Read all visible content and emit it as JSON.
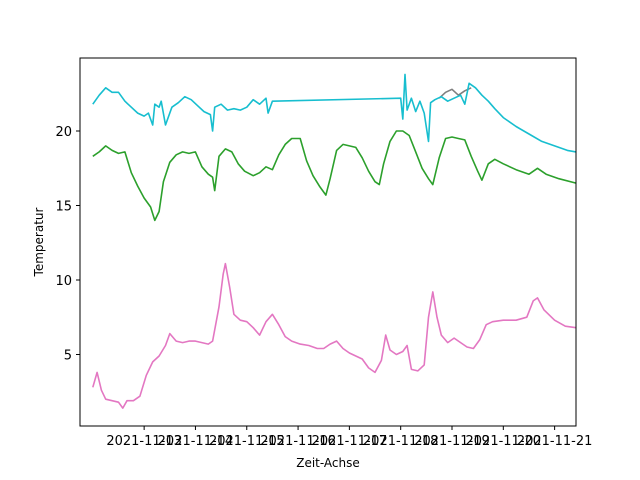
{
  "chart_data": {
    "type": "line",
    "xlabel": "Zeit-Achse",
    "ylabel": "Temperatur",
    "xlim": [
      "2021-11-11T18:00",
      "2021-11-21T10:00"
    ],
    "ylim": [
      0.2,
      24.9
    ],
    "grid": false,
    "x_ticks": [
      "2021-11-13",
      "2021-11-14",
      "2021-11-15",
      "2021-11-16",
      "2021-11-17",
      "2021-11-18",
      "2021-11-19",
      "2021-11-20",
      "2021-11-21"
    ],
    "x_tick_labels": [
      "2021-11-13",
      "2021-11-14",
      "2021-11-15",
      "2021-11-16",
      "2021-11-17",
      "2021-11-18",
      "2021-11-19",
      "2021-11-20",
      "2021-11-21"
    ],
    "y_ticks": [
      5,
      10,
      15,
      20
    ],
    "series": [
      {
        "color": "#7f7f7f",
        "points": [
          [
            "2021-11-18T18:00",
            22.2
          ],
          [
            "2021-11-18T21:00",
            22.6
          ],
          [
            "2021-11-19T00:00",
            22.8
          ],
          [
            "2021-11-19T03:00",
            22.4
          ],
          [
            "2021-11-19T06:00",
            22.7
          ],
          [
            "2021-11-19T09:00",
            22.9
          ]
        ]
      },
      {
        "color": "#17becf",
        "points": [
          [
            "2021-11-12T00:00",
            21.8
          ],
          [
            "2021-11-12T03:00",
            22.4
          ],
          [
            "2021-11-12T06:00",
            22.9
          ],
          [
            "2021-11-12T09:00",
            22.6
          ],
          [
            "2021-11-12T12:00",
            22.6
          ],
          [
            "2021-11-12T15:00",
            22.0
          ],
          [
            "2021-11-12T18:00",
            21.6
          ],
          [
            "2021-11-12T21:00",
            21.2
          ],
          [
            "2021-11-13T00:00",
            21.0
          ],
          [
            "2021-11-13T02:00",
            21.2
          ],
          [
            "2021-11-13T04:00",
            20.4
          ],
          [
            "2021-11-13T05:00",
            21.8
          ],
          [
            "2021-11-13T07:00",
            21.6
          ],
          [
            "2021-11-13T08:00",
            22.0
          ],
          [
            "2021-11-13T10:00",
            20.4
          ],
          [
            "2021-11-13T13:00",
            21.6
          ],
          [
            "2021-11-13T16:00",
            21.9
          ],
          [
            "2021-11-13T19:00",
            22.3
          ],
          [
            "2021-11-13T22:00",
            22.1
          ],
          [
            "2021-11-14T01:00",
            21.7
          ],
          [
            "2021-11-14T04:00",
            21.3
          ],
          [
            "2021-11-14T07:00",
            21.1
          ],
          [
            "2021-11-14T08:00",
            20.0
          ],
          [
            "2021-11-14T09:00",
            21.6
          ],
          [
            "2021-11-14T12:00",
            21.8
          ],
          [
            "2021-11-14T15:00",
            21.4
          ],
          [
            "2021-11-14T18:00",
            21.5
          ],
          [
            "2021-11-14T21:00",
            21.4
          ],
          [
            "2021-11-15T00:00",
            21.6
          ],
          [
            "2021-11-15T03:00",
            22.1
          ],
          [
            "2021-11-15T06:00",
            21.8
          ],
          [
            "2021-11-15T09:00",
            22.2
          ],
          [
            "2021-11-15T10:00",
            21.2
          ],
          [
            "2021-11-15T12:00",
            22.0
          ],
          [
            "2021-11-18T00:00",
            22.2
          ],
          [
            "2021-11-18T01:00",
            20.8
          ],
          [
            "2021-11-18T02:00",
            23.8
          ],
          [
            "2021-11-18T03:00",
            21.4
          ],
          [
            "2021-11-18T05:00",
            22.2
          ],
          [
            "2021-11-18T07:00",
            21.3
          ],
          [
            "2021-11-18T09:00",
            22.0
          ],
          [
            "2021-11-18T11:00",
            21.2
          ],
          [
            "2021-11-18T13:00",
            19.3
          ],
          [
            "2021-11-18T14:00",
            21.9
          ],
          [
            "2021-11-18T16:00",
            22.1
          ],
          [
            "2021-11-18T19:00",
            22.3
          ],
          [
            "2021-11-18T22:00",
            22.0
          ],
          [
            "2021-11-19T01:00",
            22.2
          ],
          [
            "2021-11-19T04:00",
            22.4
          ],
          [
            "2021-11-19T06:00",
            21.8
          ],
          [
            "2021-11-19T08:00",
            23.2
          ],
          [
            "2021-11-19T11:00",
            22.9
          ],
          [
            "2021-11-19T14:00",
            22.4
          ],
          [
            "2021-11-19T17:00",
            22.0
          ],
          [
            "2021-11-19T20:00",
            21.5
          ],
          [
            "2021-11-20T00:00",
            20.9
          ],
          [
            "2021-11-20T06:00",
            20.3
          ],
          [
            "2021-11-20T12:00",
            19.8
          ],
          [
            "2021-11-20T18:00",
            19.3
          ],
          [
            "2021-11-21T00:00",
            19.0
          ],
          [
            "2021-11-21T06:00",
            18.7
          ],
          [
            "2021-11-21T10:00",
            18.6
          ]
        ]
      },
      {
        "color": "#2ca02c",
        "points": [
          [
            "2021-11-12T00:00",
            18.3
          ],
          [
            "2021-11-12T03:00",
            18.6
          ],
          [
            "2021-11-12T06:00",
            19.0
          ],
          [
            "2021-11-12T09:00",
            18.7
          ],
          [
            "2021-11-12T12:00",
            18.5
          ],
          [
            "2021-11-12T15:00",
            18.6
          ],
          [
            "2021-11-12T18:00",
            17.2
          ],
          [
            "2021-11-12T21:00",
            16.3
          ],
          [
            "2021-11-13T00:00",
            15.5
          ],
          [
            "2021-11-13T03:00",
            14.9
          ],
          [
            "2021-11-13T05:00",
            14.0
          ],
          [
            "2021-11-13T07:00",
            14.6
          ],
          [
            "2021-11-13T09:00",
            16.6
          ],
          [
            "2021-11-13T12:00",
            17.9
          ],
          [
            "2021-11-13T15:00",
            18.4
          ],
          [
            "2021-11-13T18:00",
            18.6
          ],
          [
            "2021-11-13T21:00",
            18.5
          ],
          [
            "2021-11-14T00:00",
            18.6
          ],
          [
            "2021-11-14T03:00",
            17.6
          ],
          [
            "2021-11-14T06:00",
            17.1
          ],
          [
            "2021-11-14T08:00",
            16.9
          ],
          [
            "2021-11-14T09:00",
            16.0
          ],
          [
            "2021-11-14T11:00",
            18.3
          ],
          [
            "2021-11-14T14:00",
            18.8
          ],
          [
            "2021-11-14T17:00",
            18.6
          ],
          [
            "2021-11-14T20:00",
            17.8
          ],
          [
            "2021-11-14T23:00",
            17.3
          ],
          [
            "2021-11-15T03:00",
            17.0
          ],
          [
            "2021-11-15T06:00",
            17.2
          ],
          [
            "2021-11-15T09:00",
            17.6
          ],
          [
            "2021-11-15T12:00",
            17.4
          ],
          [
            "2021-11-15T15:00",
            18.4
          ],
          [
            "2021-11-15T18:00",
            19.1
          ],
          [
            "2021-11-15T21:00",
            19.5
          ],
          [
            "2021-11-16T01:00",
            19.5
          ],
          [
            "2021-11-16T04:00",
            18.0
          ],
          [
            "2021-11-16T07:00",
            17.0
          ],
          [
            "2021-11-16T10:00",
            16.3
          ],
          [
            "2021-11-16T13:00",
            15.7
          ],
          [
            "2021-11-16T15:00",
            16.8
          ],
          [
            "2021-11-16T18:00",
            18.7
          ],
          [
            "2021-11-16T21:00",
            19.1
          ],
          [
            "2021-11-17T00:00",
            19.0
          ],
          [
            "2021-11-17T03:00",
            18.9
          ],
          [
            "2021-11-17T06:00",
            18.2
          ],
          [
            "2021-11-17T09:00",
            17.3
          ],
          [
            "2021-11-17T12:00",
            16.6
          ],
          [
            "2021-11-17T14:00",
            16.4
          ],
          [
            "2021-11-17T16:00",
            17.8
          ],
          [
            "2021-11-17T19:00",
            19.3
          ],
          [
            "2021-11-17T22:00",
            20.0
          ],
          [
            "2021-11-18T01:00",
            20.0
          ],
          [
            "2021-11-18T04:00",
            19.7
          ],
          [
            "2021-11-18T07:00",
            18.6
          ],
          [
            "2021-11-18T10:00",
            17.5
          ],
          [
            "2021-11-18T13:00",
            16.8
          ],
          [
            "2021-11-18T15:00",
            16.4
          ],
          [
            "2021-11-18T18:00",
            18.2
          ],
          [
            "2021-11-18T21:00",
            19.5
          ],
          [
            "2021-11-19T00:00",
            19.6
          ],
          [
            "2021-11-19T03:00",
            19.5
          ],
          [
            "2021-11-19T06:00",
            19.4
          ],
          [
            "2021-11-19T09:00",
            18.3
          ],
          [
            "2021-11-19T12:00",
            17.3
          ],
          [
            "2021-11-19T14:00",
            16.7
          ],
          [
            "2021-11-19T17:00",
            17.8
          ],
          [
            "2021-11-19T20:00",
            18.1
          ],
          [
            "2021-11-20T00:00",
            17.8
          ],
          [
            "2021-11-20T06:00",
            17.4
          ],
          [
            "2021-11-20T12:00",
            17.1
          ],
          [
            "2021-11-20T16:00",
            17.5
          ],
          [
            "2021-11-20T20:00",
            17.1
          ],
          [
            "2021-11-21T02:00",
            16.8
          ],
          [
            "2021-11-21T10:00",
            16.5
          ]
        ]
      },
      {
        "color": "#e377c2",
        "points": [
          [
            "2021-11-12T00:00",
            2.8
          ],
          [
            "2021-11-12T02:00",
            3.8
          ],
          [
            "2021-11-12T04:00",
            2.6
          ],
          [
            "2021-11-12T06:00",
            2.0
          ],
          [
            "2021-11-12T09:00",
            1.9
          ],
          [
            "2021-11-12T12:00",
            1.8
          ],
          [
            "2021-11-12T14:00",
            1.4
          ],
          [
            "2021-11-12T16:00",
            1.9
          ],
          [
            "2021-11-12T19:00",
            1.9
          ],
          [
            "2021-11-12T22:00",
            2.2
          ],
          [
            "2021-11-13T01:00",
            3.6
          ],
          [
            "2021-11-13T04:00",
            4.5
          ],
          [
            "2021-11-13T07:00",
            4.9
          ],
          [
            "2021-11-13T10:00",
            5.6
          ],
          [
            "2021-11-13T12:00",
            6.4
          ],
          [
            "2021-11-13T15:00",
            5.9
          ],
          [
            "2021-11-13T18:00",
            5.8
          ],
          [
            "2021-11-13T21:00",
            5.9
          ],
          [
            "2021-11-14T00:00",
            5.9
          ],
          [
            "2021-11-14T03:00",
            5.8
          ],
          [
            "2021-11-14T06:00",
            5.7
          ],
          [
            "2021-11-14T08:00",
            5.9
          ],
          [
            "2021-11-14T11:00",
            8.2
          ],
          [
            "2021-11-14T13:00",
            10.4
          ],
          [
            "2021-11-14T14:00",
            11.1
          ],
          [
            "2021-11-14T16:00",
            9.5
          ],
          [
            "2021-11-14T18:00",
            7.7
          ],
          [
            "2021-11-14T21:00",
            7.3
          ],
          [
            "2021-11-15T00:00",
            7.2
          ],
          [
            "2021-11-15T03:00",
            6.8
          ],
          [
            "2021-11-15T06:00",
            6.3
          ],
          [
            "2021-11-15T09:00",
            7.2
          ],
          [
            "2021-11-15T12:00",
            7.7
          ],
          [
            "2021-11-15T15:00",
            7.0
          ],
          [
            "2021-11-15T18:00",
            6.2
          ],
          [
            "2021-11-15T21:00",
            5.9
          ],
          [
            "2021-11-16T01:00",
            5.7
          ],
          [
            "2021-11-16T05:00",
            5.6
          ],
          [
            "2021-11-16T09:00",
            5.4
          ],
          [
            "2021-11-16T12:00",
            5.4
          ],
          [
            "2021-11-16T15:00",
            5.7
          ],
          [
            "2021-11-16T18:00",
            5.9
          ],
          [
            "2021-11-16T21:00",
            5.4
          ],
          [
            "2021-11-17T00:00",
            5.1
          ],
          [
            "2021-11-17T03:00",
            4.9
          ],
          [
            "2021-11-17T06:00",
            4.7
          ],
          [
            "2021-11-17T09:00",
            4.1
          ],
          [
            "2021-11-17T12:00",
            3.8
          ],
          [
            "2021-11-17T15:00",
            4.6
          ],
          [
            "2021-11-17T17:00",
            6.3
          ],
          [
            "2021-11-17T19:00",
            5.3
          ],
          [
            "2021-11-17T22:00",
            5.0
          ],
          [
            "2021-11-18T01:00",
            5.2
          ],
          [
            "2021-11-18T03:00",
            5.6
          ],
          [
            "2021-11-18T05:00",
            4.0
          ],
          [
            "2021-11-18T08:00",
            3.9
          ],
          [
            "2021-11-18T11:00",
            4.3
          ],
          [
            "2021-11-18T13:00",
            7.5
          ],
          [
            "2021-11-18T15:00",
            9.2
          ],
          [
            "2021-11-18T17:00",
            7.5
          ],
          [
            "2021-11-18T19:00",
            6.3
          ],
          [
            "2021-11-18T22:00",
            5.8
          ],
          [
            "2021-11-19T01:00",
            6.1
          ],
          [
            "2021-11-19T04:00",
            5.8
          ],
          [
            "2021-11-19T07:00",
            5.5
          ],
          [
            "2021-11-19T10:00",
            5.4
          ],
          [
            "2021-11-19T13:00",
            6.0
          ],
          [
            "2021-11-19T16:00",
            7.0
          ],
          [
            "2021-11-19T19:00",
            7.2
          ],
          [
            "2021-11-20T00:00",
            7.3
          ],
          [
            "2021-11-20T06:00",
            7.3
          ],
          [
            "2021-11-20T11:00",
            7.5
          ],
          [
            "2021-11-20T14:00",
            8.6
          ],
          [
            "2021-11-20T16:00",
            8.8
          ],
          [
            "2021-11-20T19:00",
            8.0
          ],
          [
            "2021-11-21T00:00",
            7.3
          ],
          [
            "2021-11-21T05:00",
            6.9
          ],
          [
            "2021-11-21T10:00",
            6.8
          ]
        ]
      }
    ]
  }
}
